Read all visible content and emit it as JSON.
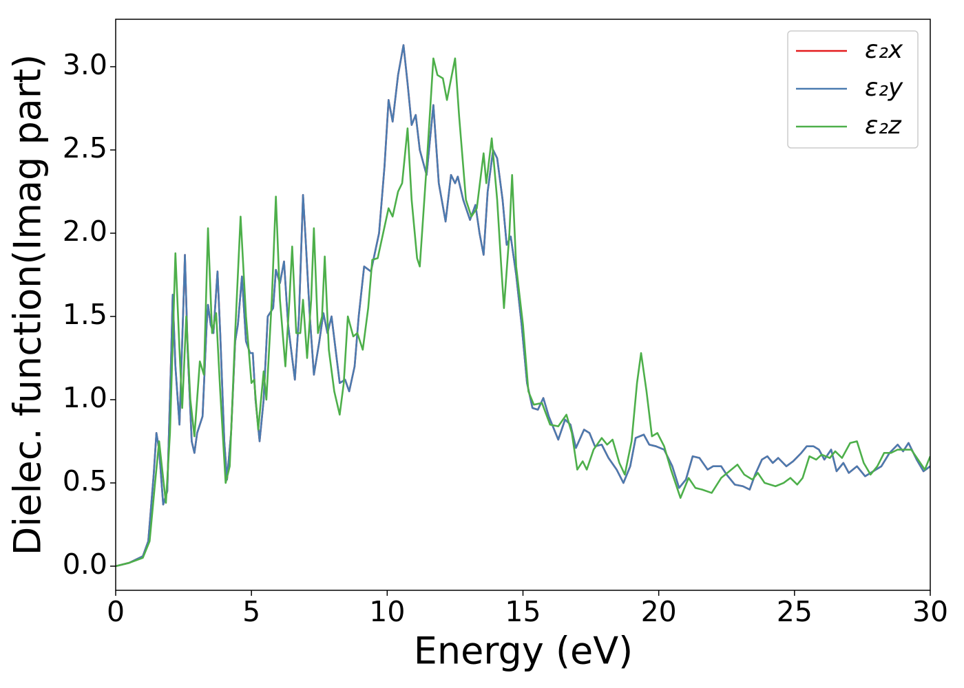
{
  "chart_data": {
    "type": "line",
    "xlabel": "Energy (eV)",
    "ylabel": "Dielec. function(Imag part)",
    "xlim": [
      0,
      30
    ],
    "ylim": [
      -0.145,
      3.285
    ],
    "xticks": [
      0,
      5,
      10,
      15,
      20,
      25,
      30
    ],
    "yticks": [
      {
        "value": 0,
        "label": "0.0"
      },
      0.5,
      {
        "value": 1,
        "label": "1.0"
      },
      1.5,
      {
        "value": 2,
        "label": "2.0"
      },
      2.5,
      {
        "value": 3,
        "label": "3.0"
      }
    ],
    "legend": "upper right",
    "series": [
      {
        "name": "ε₂x",
        "color": "#e41a1c",
        "x": [
          0,
          0.5,
          1.0,
          1.2,
          1.4,
          1.5,
          1.6,
          1.75,
          1.9,
          2.05,
          2.1,
          2.2,
          2.35,
          2.5,
          2.55,
          2.65,
          2.8,
          2.9,
          3.0,
          3.2,
          3.35,
          3.4,
          3.5,
          3.6,
          3.75,
          3.85,
          4.0,
          4.1,
          4.25,
          4.4,
          4.5,
          4.65,
          4.8,
          4.95,
          5.05,
          5.15,
          5.3,
          5.45,
          5.6,
          5.8,
          5.9,
          6.05,
          6.2,
          6.35,
          6.5,
          6.6,
          6.75,
          6.9,
          7.0,
          7.15,
          7.3,
          7.5,
          7.65,
          7.8,
          7.95,
          8.1,
          8.25,
          8.45,
          8.6,
          8.8,
          8.95,
          9.15,
          9.4,
          9.7,
          9.9,
          10.05,
          10.2,
          10.4,
          10.6,
          10.75,
          10.9,
          11.05,
          11.2,
          11.45,
          11.7,
          11.9,
          12.15,
          12.35,
          12.5,
          12.6,
          12.8,
          13.05,
          13.25,
          13.4,
          13.55,
          13.7,
          13.9,
          14.05,
          14.25,
          14.4,
          14.55,
          14.75,
          14.95,
          15.15,
          15.35,
          15.55,
          15.75,
          15.95,
          16.15,
          16.3,
          16.55,
          16.75,
          16.95,
          17.25,
          17.45,
          17.65,
          17.9,
          18.15,
          18.45,
          18.7,
          18.95,
          19.15,
          19.45,
          19.65,
          19.9,
          20.2,
          20.5,
          20.75,
          21.0,
          21.25,
          21.5,
          21.8,
          22.0,
          22.3,
          22.5,
          22.8,
          23.1,
          23.35,
          23.55,
          23.8,
          24.0,
          24.2,
          24.4,
          24.7,
          24.95,
          25.25,
          25.45,
          25.7,
          25.9,
          26.1,
          26.35,
          26.55,
          26.8,
          27.0,
          27.3,
          27.6,
          27.9,
          28.2,
          28.5,
          28.8,
          29.0,
          29.2,
          29.5,
          29.75,
          30
        ],
        "values": [
          0,
          0.02,
          0.06,
          0.15,
          0.55,
          0.8,
          0.7,
          0.37,
          0.45,
          1.3,
          1.63,
          1.2,
          0.85,
          1.6,
          1.87,
          1.3,
          0.75,
          0.68,
          0.8,
          0.9,
          1.45,
          1.57,
          1.45,
          1.4,
          1.77,
          1.4,
          0.75,
          0.52,
          0.8,
          1.35,
          1.45,
          1.74,
          1.35,
          1.28,
          1.28,
          1.0,
          0.75,
          1.0,
          1.5,
          1.55,
          1.78,
          1.7,
          1.83,
          1.45,
          1.25,
          1.12,
          1.5,
          2.23,
          1.95,
          1.5,
          1.15,
          1.35,
          1.52,
          1.4,
          1.5,
          1.3,
          1.1,
          1.12,
          1.05,
          1.2,
          1.5,
          1.8,
          1.77,
          2.0,
          2.4,
          2.8,
          2.67,
          2.95,
          3.13,
          2.9,
          2.65,
          2.71,
          2.5,
          2.35,
          2.77,
          2.3,
          2.07,
          2.35,
          2.3,
          2.34,
          2.2,
          2.08,
          2.17,
          2.0,
          1.87,
          2.25,
          2.5,
          2.45,
          2.2,
          1.93,
          1.98,
          1.75,
          1.45,
          1.1,
          0.95,
          0.94,
          1.01,
          0.9,
          0.82,
          0.76,
          0.88,
          0.85,
          0.71,
          0.82,
          0.8,
          0.72,
          0.73,
          0.65,
          0.58,
          0.5,
          0.6,
          0.77,
          0.79,
          0.73,
          0.72,
          0.7,
          0.6,
          0.47,
          0.52,
          0.66,
          0.65,
          0.58,
          0.6,
          0.6,
          0.55,
          0.49,
          0.48,
          0.46,
          0.55,
          0.64,
          0.66,
          0.62,
          0.65,
          0.6,
          0.63,
          0.68,
          0.72,
          0.72,
          0.7,
          0.64,
          0.7,
          0.57,
          0.62,
          0.56,
          0.6,
          0.54,
          0.57,
          0.6,
          0.68,
          0.73,
          0.69,
          0.74,
          0.64,
          0.57,
          0.6
        ]
      },
      {
        "name": "ε₂y",
        "color": "#4a7bb0",
        "x": [
          0,
          0.5,
          1.0,
          1.2,
          1.4,
          1.5,
          1.6,
          1.75,
          1.9,
          2.05,
          2.1,
          2.2,
          2.35,
          2.5,
          2.55,
          2.65,
          2.8,
          2.9,
          3.0,
          3.2,
          3.35,
          3.4,
          3.5,
          3.6,
          3.75,
          3.85,
          4.0,
          4.1,
          4.25,
          4.4,
          4.5,
          4.65,
          4.8,
          4.95,
          5.05,
          5.15,
          5.3,
          5.45,
          5.6,
          5.8,
          5.9,
          6.05,
          6.2,
          6.35,
          6.5,
          6.6,
          6.75,
          6.9,
          7.0,
          7.15,
          7.3,
          7.5,
          7.65,
          7.8,
          7.95,
          8.1,
          8.25,
          8.45,
          8.6,
          8.8,
          8.95,
          9.15,
          9.4,
          9.7,
          9.9,
          10.05,
          10.2,
          10.4,
          10.6,
          10.75,
          10.9,
          11.05,
          11.2,
          11.45,
          11.7,
          11.9,
          12.15,
          12.35,
          12.5,
          12.6,
          12.8,
          13.05,
          13.25,
          13.4,
          13.55,
          13.7,
          13.9,
          14.05,
          14.25,
          14.4,
          14.55,
          14.75,
          14.95,
          15.15,
          15.35,
          15.55,
          15.75,
          15.95,
          16.15,
          16.3,
          16.55,
          16.75,
          16.95,
          17.25,
          17.45,
          17.65,
          17.9,
          18.15,
          18.45,
          18.7,
          18.95,
          19.15,
          19.45,
          19.65,
          19.9,
          20.2,
          20.5,
          20.75,
          21.0,
          21.25,
          21.5,
          21.8,
          22.0,
          22.3,
          22.5,
          22.8,
          23.1,
          23.35,
          23.55,
          23.8,
          24.0,
          24.2,
          24.4,
          24.7,
          24.95,
          25.25,
          25.45,
          25.7,
          25.9,
          26.1,
          26.35,
          26.55,
          26.8,
          27.0,
          27.3,
          27.6,
          27.9,
          28.2,
          28.5,
          28.8,
          29.0,
          29.2,
          29.5,
          29.75,
          30
        ],
        "values": [
          0,
          0.02,
          0.06,
          0.15,
          0.55,
          0.8,
          0.7,
          0.37,
          0.45,
          1.3,
          1.63,
          1.2,
          0.85,
          1.6,
          1.87,
          1.3,
          0.75,
          0.68,
          0.8,
          0.9,
          1.45,
          1.57,
          1.45,
          1.4,
          1.77,
          1.4,
          0.75,
          0.52,
          0.8,
          1.35,
          1.45,
          1.74,
          1.35,
          1.28,
          1.28,
          1.0,
          0.75,
          1.0,
          1.5,
          1.55,
          1.78,
          1.7,
          1.83,
          1.45,
          1.25,
          1.12,
          1.5,
          2.23,
          1.95,
          1.5,
          1.15,
          1.35,
          1.52,
          1.4,
          1.5,
          1.3,
          1.1,
          1.12,
          1.05,
          1.2,
          1.5,
          1.8,
          1.77,
          2.0,
          2.4,
          2.8,
          2.67,
          2.95,
          3.13,
          2.9,
          2.65,
          2.71,
          2.5,
          2.35,
          2.77,
          2.3,
          2.07,
          2.35,
          2.3,
          2.34,
          2.2,
          2.08,
          2.17,
          2.0,
          1.87,
          2.25,
          2.5,
          2.45,
          2.2,
          1.93,
          1.98,
          1.75,
          1.45,
          1.1,
          0.95,
          0.94,
          1.01,
          0.9,
          0.82,
          0.76,
          0.88,
          0.85,
          0.71,
          0.82,
          0.8,
          0.72,
          0.73,
          0.65,
          0.58,
          0.5,
          0.6,
          0.77,
          0.79,
          0.73,
          0.72,
          0.7,
          0.6,
          0.47,
          0.52,
          0.66,
          0.65,
          0.58,
          0.6,
          0.6,
          0.55,
          0.49,
          0.48,
          0.46,
          0.55,
          0.64,
          0.66,
          0.62,
          0.65,
          0.6,
          0.63,
          0.68,
          0.72,
          0.72,
          0.7,
          0.64,
          0.7,
          0.57,
          0.62,
          0.56,
          0.6,
          0.54,
          0.57,
          0.6,
          0.68,
          0.73,
          0.69,
          0.74,
          0.64,
          0.57,
          0.6
        ]
      },
      {
        "name": "ε₂z",
        "color": "#4daf4a",
        "x": [
          0,
          0.5,
          1.0,
          1.25,
          1.45,
          1.6,
          1.7,
          1.85,
          2.0,
          2.2,
          2.35,
          2.45,
          2.6,
          2.75,
          2.9,
          3.1,
          3.25,
          3.4,
          3.55,
          3.7,
          3.85,
          4.05,
          4.2,
          4.4,
          4.6,
          4.8,
          5.0,
          5.1,
          5.25,
          5.45,
          5.55,
          5.75,
          5.9,
          6.05,
          6.25,
          6.4,
          6.5,
          6.65,
          6.8,
          6.9,
          7.05,
          7.2,
          7.3,
          7.45,
          7.6,
          7.7,
          7.85,
          8.05,
          8.25,
          8.4,
          8.55,
          8.75,
          8.9,
          9.1,
          9.3,
          9.45,
          9.65,
          9.85,
          10.05,
          10.2,
          10.4,
          10.55,
          10.75,
          10.9,
          11.1,
          11.2,
          11.45,
          11.7,
          11.85,
          12.05,
          12.2,
          12.5,
          12.65,
          12.9,
          13.1,
          13.3,
          13.55,
          13.65,
          13.85,
          14.05,
          14.2,
          14.3,
          14.5,
          14.6,
          14.75,
          15.0,
          15.2,
          15.4,
          15.7,
          16.0,
          16.3,
          16.6,
          16.8,
          17.0,
          17.2,
          17.35,
          17.6,
          17.9,
          18.1,
          18.3,
          18.55,
          18.75,
          19.0,
          19.2,
          19.35,
          19.55,
          19.75,
          19.95,
          20.2,
          20.45,
          20.8,
          21.1,
          21.35,
          21.6,
          21.95,
          22.3,
          22.6,
          22.9,
          23.15,
          23.45,
          23.65,
          23.9,
          24.3,
          24.6,
          24.85,
          25.1,
          25.3,
          25.55,
          25.8,
          26.0,
          26.3,
          26.5,
          26.75,
          27.05,
          27.3,
          27.55,
          27.8,
          28.05,
          28.3,
          28.55,
          28.8,
          29.05,
          29.3,
          29.55,
          29.8,
          30
        ],
        "values": [
          0,
          0.02,
          0.05,
          0.15,
          0.5,
          0.75,
          0.6,
          0.38,
          0.8,
          1.88,
          1.3,
          0.95,
          1.5,
          1.0,
          0.78,
          1.23,
          1.15,
          2.03,
          1.4,
          1.52,
          1.05,
          0.5,
          0.6,
          1.4,
          2.1,
          1.5,
          1.1,
          1.12,
          0.82,
          1.17,
          1.0,
          1.6,
          2.22,
          1.6,
          1.2,
          1.6,
          1.92,
          1.4,
          1.4,
          1.6,
          1.25,
          1.6,
          2.03,
          1.4,
          1.5,
          1.86,
          1.3,
          1.05,
          0.91,
          1.1,
          1.5,
          1.38,
          1.4,
          1.3,
          1.55,
          1.84,
          1.85,
          2.0,
          2.15,
          2.1,
          2.25,
          2.3,
          2.63,
          2.2,
          1.85,
          1.8,
          2.4,
          3.05,
          2.95,
          2.93,
          2.8,
          3.05,
          2.7,
          2.2,
          2.1,
          2.15,
          2.48,
          2.3,
          2.57,
          2.2,
          1.8,
          1.55,
          2.0,
          2.35,
          1.8,
          1.45,
          1.05,
          0.97,
          0.98,
          0.85,
          0.84,
          0.91,
          0.8,
          0.58,
          0.63,
          0.58,
          0.7,
          0.77,
          0.73,
          0.76,
          0.62,
          0.55,
          0.75,
          1.1,
          1.28,
          1.05,
          0.78,
          0.8,
          0.72,
          0.58,
          0.41,
          0.53,
          0.47,
          0.46,
          0.44,
          0.53,
          0.57,
          0.61,
          0.55,
          0.52,
          0.56,
          0.5,
          0.48,
          0.5,
          0.53,
          0.49,
          0.53,
          0.66,
          0.64,
          0.67,
          0.65,
          0.69,
          0.65,
          0.74,
          0.75,
          0.62,
          0.55,
          0.6,
          0.68,
          0.68,
          0.7,
          0.7,
          0.7,
          0.64,
          0.58,
          0.66
        ]
      }
    ]
  }
}
